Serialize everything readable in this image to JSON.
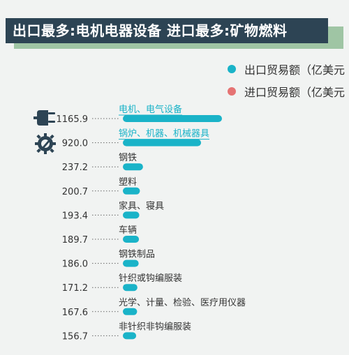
{
  "title": "出口最多:电机电器设备  进口最多:矿物燃料",
  "legend": [
    {
      "label": "出口贸易额（亿美元",
      "color": "#1ab3c8"
    },
    {
      "label": "进口贸易额（亿美元",
      "color": "#e57373"
    }
  ],
  "colors": {
    "bar": "#1ab3c8",
    "banner": "#2d4454",
    "banner_shadow": "#9fc5a4",
    "icon": "#2d4454",
    "leader": "#666666"
  },
  "icons": [
    "plug-icon",
    "gear-wrench-icon"
  ],
  "chart_data": {
    "type": "bar",
    "orientation": "horizontal",
    "categories": [
      "电机、电气设备",
      "锅炉、机器、机械器具",
      "钢铁",
      "塑料",
      "家具、寝具",
      "车辆",
      "钢铁制品",
      "针织或钩编服装",
      "光学、计量、检验、医疗用仪器",
      "非针织非钩编服装"
    ],
    "series": [
      {
        "name": "出口贸易额（亿美元",
        "values": [
          1165.9,
          920.0,
          237.2,
          200.7,
          193.4,
          189.7,
          186.0,
          171.2,
          167.6,
          156.7
        ]
      }
    ],
    "value_labels": [
      "1165.9",
      "920.0",
      "237.2",
      "200.7",
      "193.4",
      "189.7",
      "186.0",
      "171.2",
      "167.6",
      "156.7"
    ],
    "highlighted": [
      0,
      1
    ]
  }
}
